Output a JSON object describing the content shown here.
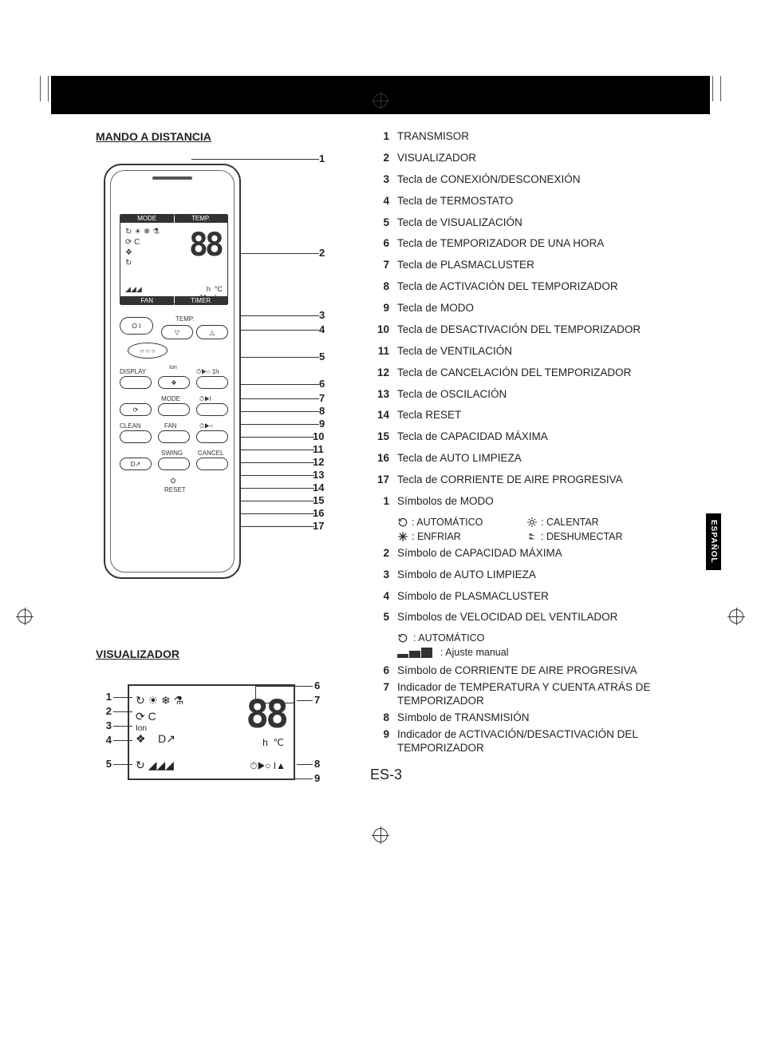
{
  "language_tab": "ESPAÑOL",
  "page_number": "ES-3",
  "sections": {
    "remote_title": "MANDO A DISTANCIA",
    "display_title": "VISUALIZADOR"
  },
  "remote_diagram": {
    "lcd": {
      "header_left": "MODE",
      "header_right": "TEMP.",
      "footer_left": "FAN",
      "footer_right": "TIMER",
      "digits": "88",
      "unit_h": "h",
      "unit_c": "°C"
    },
    "button_labels": {
      "power": "O I",
      "temp": "TEMP.",
      "display": "DISPLAY",
      "ion": "Ion",
      "oneh": "1h",
      "mode": "MODE",
      "clean": "CLEAN",
      "fan": "FAN",
      "swing": "SWING",
      "cancel": "CANCEL",
      "reset": "RESET"
    },
    "callouts": [
      "1",
      "2",
      "3",
      "4",
      "5",
      "6",
      "7",
      "8",
      "9",
      "10",
      "11",
      "12",
      "13",
      "14",
      "15",
      "16",
      "17"
    ]
  },
  "remote_legend": [
    {
      "n": "1",
      "t": "TRANSMISOR"
    },
    {
      "n": "2",
      "t": "VISUALIZADOR"
    },
    {
      "n": "3",
      "t": "Tecla de CONEXIÓN/DESCONEXIÓN"
    },
    {
      "n": "4",
      "t": "Tecla de TERMOSTATO"
    },
    {
      "n": "5",
      "t": "Tecla de VISUALIZACIÓN"
    },
    {
      "n": "6",
      "t": "Tecla de TEMPORIZADOR DE UNA HORA"
    },
    {
      "n": "7",
      "t": "Tecla de PLASMACLUSTER"
    },
    {
      "n": "8",
      "t": "Tecla de ACTIVACIÓN DEL TEMPORIZADOR"
    },
    {
      "n": "9",
      "t": "Tecla de MODO"
    },
    {
      "n": "10",
      "t": "Tecla de DESACTIVACIÓN DEL TEMPORIZADOR"
    },
    {
      "n": "11",
      "t": "Tecla de VENTILACIÓN"
    },
    {
      "n": "12",
      "t": "Tecla de CANCELACIÓN DEL TEMPORIZADOR"
    },
    {
      "n": "13",
      "t": "Tecla de OSCILACIÓN"
    },
    {
      "n": "14",
      "t": "Tecla RESET"
    },
    {
      "n": "15",
      "t": "Tecla de CAPACIDAD MÁXIMA"
    },
    {
      "n": "16",
      "t": "Tecla de AUTO LIMPIEZA"
    },
    {
      "n": "17",
      "t": "Tecla de CORRIENTE DE AIRE PROGRESIVA"
    }
  ],
  "display_legend_intro": {
    "n": "1",
    "t": "Símbolos de MODO"
  },
  "mode_symbols": {
    "auto": ": AUTOMÁTICO",
    "heat": ": CALENTAR",
    "cool": ": ENFRIAR",
    "dry": ": DESHUMECTAR"
  },
  "display_legend": [
    {
      "n": "2",
      "t": "Símbolo de CAPACIDAD MÁXIMA"
    },
    {
      "n": "3",
      "t": "Símbolo de AUTO LIMPIEZA"
    },
    {
      "n": "4",
      "t": "Símbolo de PLASMACLUSTER"
    },
    {
      "n": "5",
      "t": "Símbolos de VELOCIDAD DEL VENTILADOR"
    }
  ],
  "fan_symbols": {
    "auto": ": AUTOMÁTICO",
    "manual": ": Ajuste manual"
  },
  "display_legend_tail": [
    {
      "n": "6",
      "t": "Símbolo de CORRIENTE DE AIRE PROGRESIVA"
    },
    {
      "n": "7",
      "t": "Indicador de TEMPERATURA Y CUENTA ATRÁS DE TEMPORIZADOR"
    },
    {
      "n": "8",
      "t": "Símbolo de TRANSMISIÓN"
    },
    {
      "n": "9",
      "t": "Indicador de ACTIVACIÓN/DESACTIVACIÓN DEL TEMPORIZADOR"
    }
  ],
  "display_diagram": {
    "left_nums": [
      "1",
      "2",
      "3",
      "4",
      "5"
    ],
    "right_nums": [
      "6",
      "7",
      "8",
      "9"
    ],
    "digits": "88"
  },
  "colors": {
    "text": "#222222",
    "line": "#333333",
    "bg": "#ffffff",
    "bar": "#000000"
  }
}
